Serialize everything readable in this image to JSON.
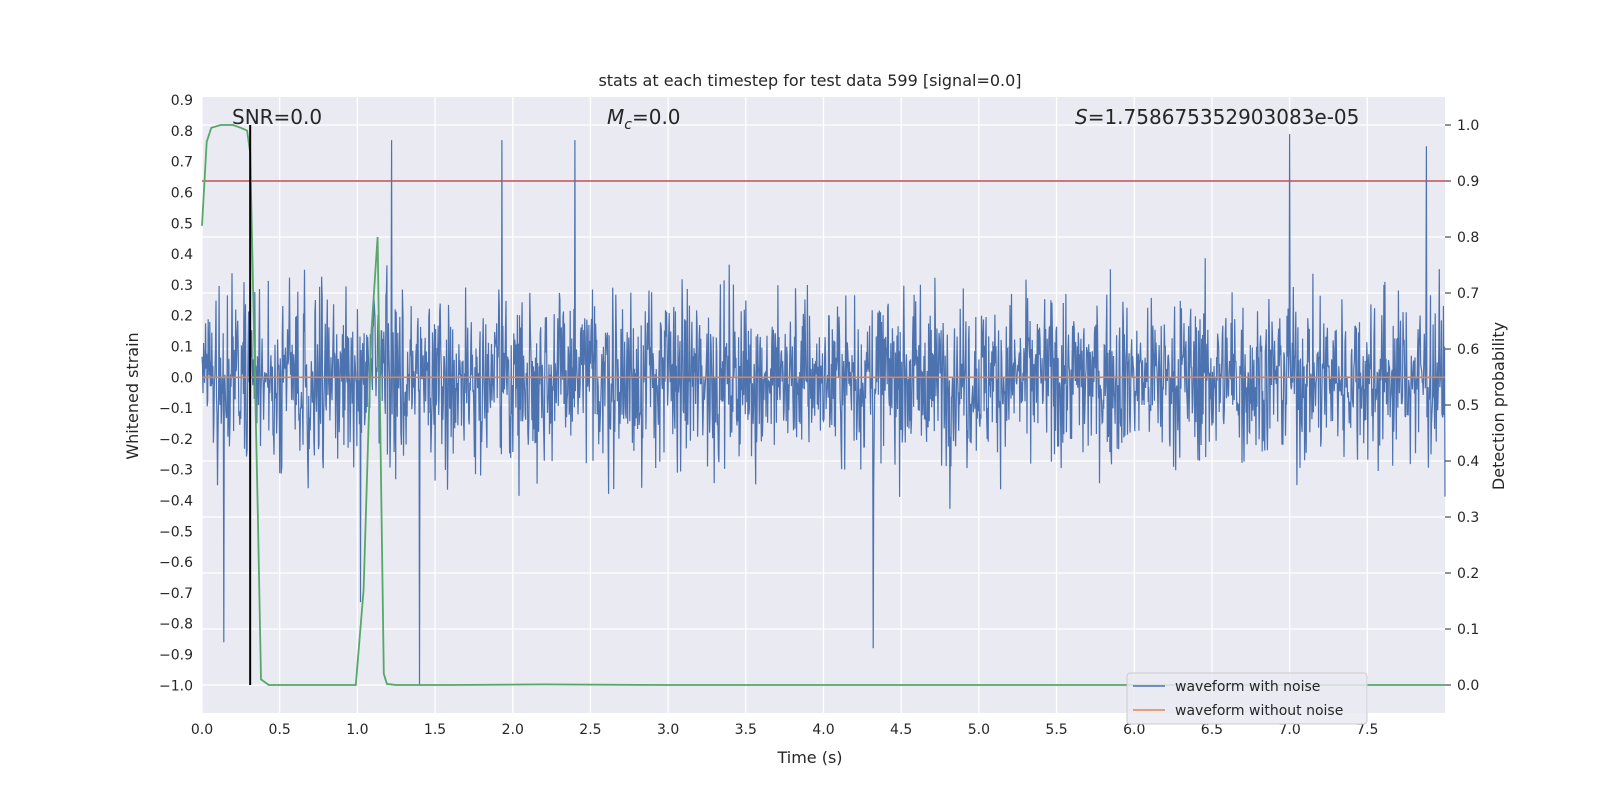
{
  "chart_data": {
    "type": "line",
    "title": "stats at each timestep for test data 599 [signal=0.0]",
    "xlabel": "Time (s)",
    "ylabel_left": "Whitened strain",
    "ylabel_right": "Detection probability",
    "xlim": [
      0.0,
      8.0
    ],
    "ylim_left": [
      -1.09,
      0.91
    ],
    "ylim_right": [
      -0.05,
      1.05
    ],
    "xticks": [
      "0.0",
      "0.5",
      "1.0",
      "1.5",
      "2.0",
      "2.5",
      "3.0",
      "3.5",
      "4.0",
      "4.5",
      "5.0",
      "5.5",
      "6.0",
      "6.5",
      "7.0",
      "7.5"
    ],
    "yticks_left": [
      "0.9",
      "0.8",
      "0.7",
      "0.6",
      "0.5",
      "0.4",
      "0.3",
      "0.2",
      "0.1",
      "0.0",
      "−0.1",
      "−0.2",
      "−0.3",
      "−0.4",
      "−0.5",
      "−0.6",
      "−0.7",
      "−0.8",
      "−0.9",
      "−1.0"
    ],
    "yticks_right": [
      "1.0",
      "0.9",
      "0.8",
      "0.7",
      "0.6",
      "0.5",
      "0.4",
      "0.3",
      "0.2",
      "0.1",
      "0.0"
    ],
    "grid": true,
    "legend_position": "lower-right",
    "annotations": {
      "snr": "SNR=0.0",
      "mc_symbol": "M",
      "mc_sub": "c",
      "mc_value": "=0.0",
      "s_symbol": "S",
      "s_value": "=1.758675352903083e-05"
    },
    "series": [
      {
        "name": "waveform with noise",
        "color": "#4c72b0",
        "axis": "left",
        "note_envelope_peaks": [
          {
            "x": 0.14,
            "y": -0.86
          },
          {
            "x": 1.02,
            "y": -0.73
          },
          {
            "x": 1.22,
            "y": 0.77
          },
          {
            "x": 1.4,
            "y": -1.0
          },
          {
            "x": 1.93,
            "y": 0.77
          },
          {
            "x": 2.4,
            "y": 0.77
          },
          {
            "x": 4.32,
            "y": -0.88
          },
          {
            "x": 7.0,
            "y": 0.79
          },
          {
            "x": 7.88,
            "y": 0.75
          }
        ],
        "typical_amplitude": 0.45
      },
      {
        "name": "waveform without noise",
        "color": "#dd8452",
        "axis": "left",
        "x": [
          0.0,
          8.0
        ],
        "y": [
          0.0,
          0.0
        ]
      }
    ],
    "detection_probability": {
      "color": "#55a868",
      "axis": "right",
      "x": [
        0.0,
        0.03,
        0.06,
        0.12,
        0.2,
        0.25,
        0.29,
        0.31,
        0.36,
        0.38,
        0.43,
        0.5,
        0.8,
        0.99,
        1.04,
        1.09,
        1.13,
        1.17,
        1.19,
        1.25,
        1.6,
        2.2,
        3.0,
        8.0
      ],
      "y": [
        0.82,
        0.97,
        0.995,
        1.0,
        1.0,
        0.995,
        0.99,
        0.95,
        0.3,
        0.01,
        0.0,
        0.0,
        0.0,
        0.0,
        0.17,
        0.63,
        0.8,
        0.02,
        0.002,
        0.0,
        0.0,
        0.001,
        0.0,
        0.0
      ]
    },
    "threshold": {
      "color": "#c44e52",
      "axis": "right",
      "value": 0.9
    },
    "marker_line": {
      "color": "#000000",
      "x": 0.31,
      "y_from": 0.0,
      "y_to": 1.0,
      "axis": "right"
    }
  },
  "legend": {
    "entries": [
      {
        "label": "waveform with noise",
        "color": "#4c72b0"
      },
      {
        "label": "waveform without noise",
        "color": "#dd8452"
      }
    ]
  },
  "colors": {
    "plot_background": "#eaeaf2",
    "grid": "#ffffff",
    "text": "#262626"
  }
}
